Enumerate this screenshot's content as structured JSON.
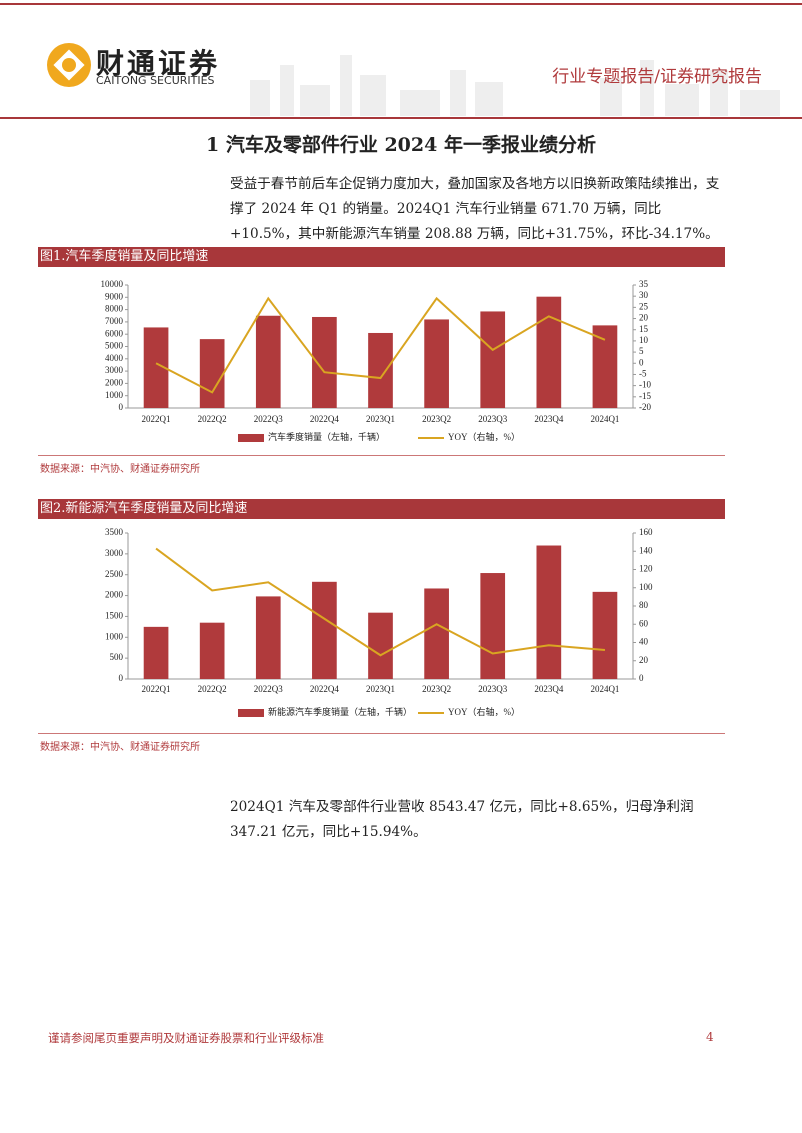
{
  "header": {
    "company": "财通证券",
    "company_en": "CAITONG SECURITIES",
    "report_type": "行业专题报告/证券研究报告"
  },
  "heading": "1   汽车及零部件行业 2024 年一季报业绩分析",
  "paragraphs": [
    "受益于春节前后车企促销力度加大，叠加国家及各地方以旧换新政策陆续推出，支撑了 2024 年 Q1 的销量。2024Q1 汽车行业销量 671.70 万辆，同比+10.5%，其中新能源汽车销量 208.88 万辆，同比+31.75%，环比-34.17%。",
    "2024Q1 汽车及零部件行业营收 8543.47 亿元，同比+8.65%，归母净利润 347.21 亿元，同比+15.94%。"
  ],
  "chart_data": [
    {
      "type": "bar_line",
      "title": "图1.汽车季度销量及同比增速",
      "source": "数据来源：中汽协、财通证券研究所",
      "categories": [
        "2022Q1",
        "2022Q2",
        "2022Q3",
        "2022Q4",
        "2023Q1",
        "2023Q2",
        "2023Q3",
        "2023Q4",
        "2024Q1"
      ],
      "series": [
        {
          "name": "汽车季度销量（左轴，千辆）",
          "color": "#b03a3c",
          "type": "bar",
          "axis": "y",
          "values": [
            6550,
            5600,
            7500,
            7400,
            6100,
            7200,
            7850,
            9050,
            6717
          ]
        },
        {
          "name": "YOY（右轴，%）",
          "color": "#d9a521",
          "type": "line",
          "axis": "y2",
          "values": [
            0,
            -13,
            29,
            -4,
            -6.6,
            29,
            6,
            21,
            10.5
          ]
        }
      ],
      "ylim": [
        0,
        10000
      ],
      "yticks": [
        0,
        1000,
        2000,
        3000,
        4000,
        5000,
        6000,
        7000,
        8000,
        9000,
        10000
      ],
      "y2lim": [
        -20,
        35
      ],
      "y2ticks": [
        -20,
        -15,
        -10,
        -5,
        0,
        5,
        10,
        15,
        20,
        25,
        30,
        35
      ]
    },
    {
      "type": "bar_line",
      "title": "图2.新能源汽车季度销量及同比增速",
      "source": "数据来源：中汽协、财通证券研究所",
      "categories": [
        "2022Q1",
        "2022Q2",
        "2022Q3",
        "2022Q4",
        "2023Q1",
        "2023Q2",
        "2023Q3",
        "2023Q4",
        "2024Q1"
      ],
      "series": [
        {
          "name": "新能源汽车季度销量（左轴，千辆）",
          "color": "#b03a3c",
          "type": "bar",
          "axis": "y",
          "values": [
            1250,
            1350,
            1980,
            2330,
            1590,
            2170,
            2540,
            3200,
            2089
          ]
        },
        {
          "name": "YOY（右轴，%）",
          "color": "#d9a521",
          "type": "line",
          "axis": "y2",
          "values": [
            143,
            97,
            106,
            66,
            26,
            60,
            28,
            37,
            31.75
          ]
        }
      ],
      "ylim": [
        0,
        3500
      ],
      "yticks": [
        0,
        500,
        1000,
        1500,
        2000,
        2500,
        3000,
        3500
      ],
      "y2lim": [
        0,
        160
      ],
      "y2ticks": [
        0,
        20,
        40,
        60,
        80,
        100,
        120,
        140,
        160
      ]
    }
  ],
  "footer": {
    "disclaimer": "谨请参阅尾页重要声明及财通证券股票和行业评级标准",
    "page": "4"
  }
}
